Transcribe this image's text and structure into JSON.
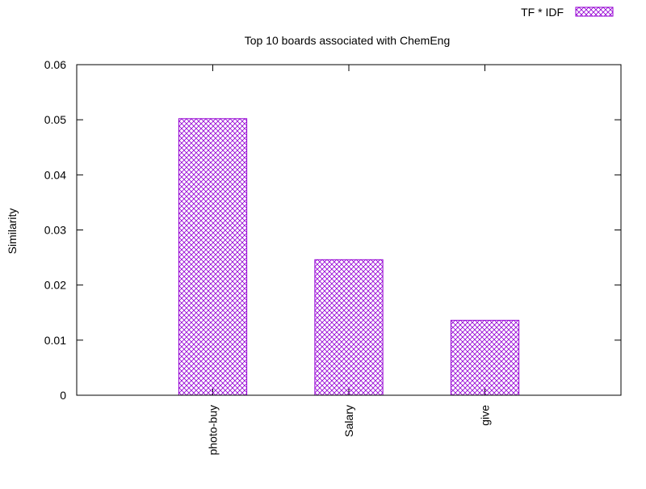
{
  "chart_data": {
    "type": "bar",
    "title": "Top 10 boards associated with ChemEng",
    "xlabel": "",
    "ylabel": "Similarity",
    "categories": [
      "photo-buy",
      "Salary",
      "give"
    ],
    "series": [
      {
        "name": "TF * IDF",
        "values": [
          0.0502,
          0.0246,
          0.0136
        ],
        "color": "#9400d3",
        "pattern": "crosshatch"
      }
    ],
    "ylim": [
      0,
      0.06
    ],
    "yticks": [
      "0",
      "0.01",
      "0.02",
      "0.03",
      "0.04",
      "0.05",
      "0.06"
    ],
    "grid": false,
    "legend_position": "top-right"
  }
}
